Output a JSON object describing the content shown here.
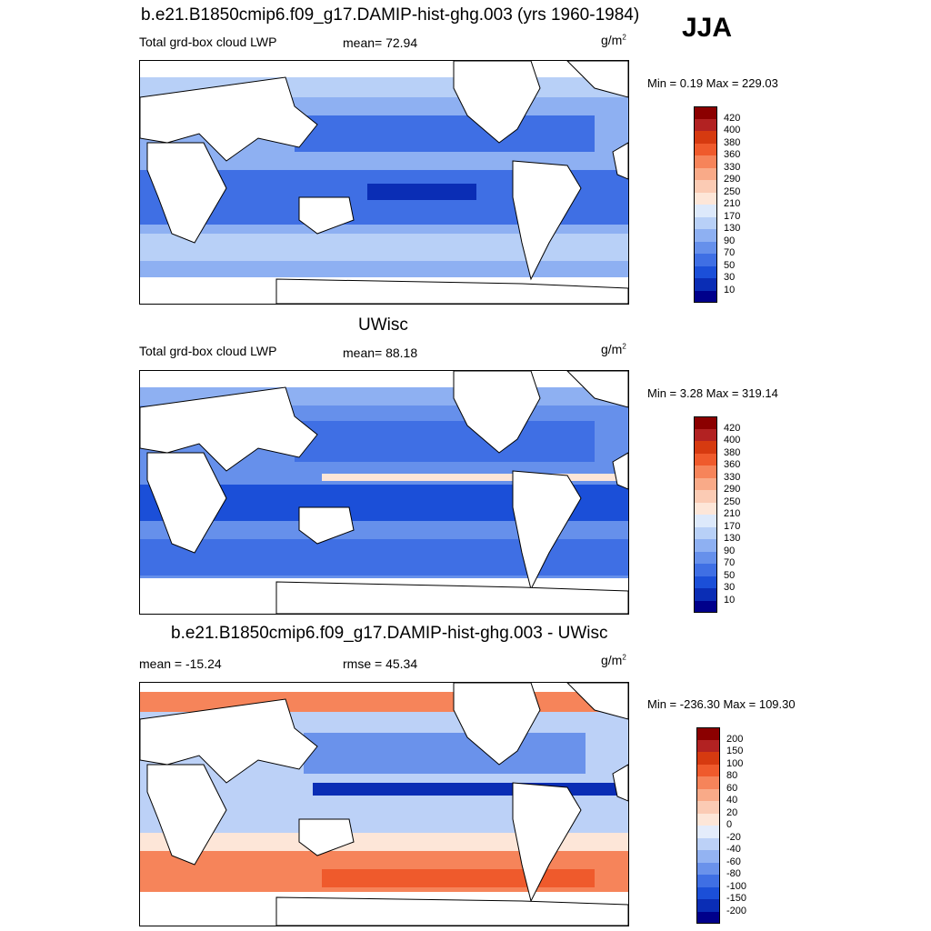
{
  "season": "JJA",
  "panels": [
    {
      "title": "b.e21.B1850cmip6.f09_g17.DAMIP-hist-ghg.003 (yrs 1960-1984)",
      "left_label": "Total grd-box cloud LWP",
      "center_label": "mean=  72.94",
      "unit_base": "g/m",
      "unit_exp": "2",
      "minmax": "Min =   0.19 Max = 229.03",
      "colorbar": {
        "labels": [
          "420",
          "400",
          "380",
          "360",
          "330",
          "290",
          "250",
          "210",
          "170",
          "130",
          "90",
          "70",
          "50",
          "30",
          "10"
        ],
        "colors": [
          "#8b0000",
          "#b22222",
          "#d63a10",
          "#ef5a2c",
          "#f6845a",
          "#f9aa88",
          "#fbcbb4",
          "#fde6d8",
          "#dde9fb",
          "#b8d0f7",
          "#8eb0f2",
          "#6690eb",
          "#3f6fe4",
          "#1b4fd8",
          "#0a2db5",
          "#00008b"
        ]
      }
    },
    {
      "title": "UWisc",
      "left_label": "Total grd-box cloud LWP",
      "center_label": "mean=  88.18",
      "unit_base": "g/m",
      "unit_exp": "2",
      "minmax": "Min =   3.28 Max = 319.14",
      "colorbar": {
        "labels": [
          "420",
          "400",
          "380",
          "360",
          "330",
          "290",
          "250",
          "210",
          "170",
          "130",
          "90",
          "70",
          "50",
          "30",
          "10"
        ],
        "colors": [
          "#8b0000",
          "#b22222",
          "#d63a10",
          "#ef5a2c",
          "#f6845a",
          "#f9aa88",
          "#fbcbb4",
          "#fde6d8",
          "#dde9fb",
          "#b8d0f7",
          "#8eb0f2",
          "#6690eb",
          "#3f6fe4",
          "#1b4fd8",
          "#0a2db5",
          "#00008b"
        ]
      }
    },
    {
      "title": "b.e21.B1850cmip6.f09_g17.DAMIP-hist-ghg.003 - UWisc",
      "left_label": "mean = -15.24",
      "center_label": "rmse =  45.34",
      "unit_base": "g/m",
      "unit_exp": "2",
      "minmax": "Min = -236.30 Max = 109.30",
      "colorbar": {
        "labels": [
          "200",
          "150",
          "100",
          "80",
          "60",
          "40",
          "20",
          "0",
          "-20",
          "-40",
          "-60",
          "-80",
          "-100",
          "-150",
          "-200"
        ],
        "colors": [
          "#8b0000",
          "#b22222",
          "#d63a10",
          "#ef5a2c",
          "#f6845a",
          "#f9aa88",
          "#fbcbb4",
          "#fde6d8",
          "#e4ecfb",
          "#bcd1f7",
          "#93b3f2",
          "#6a92eb",
          "#3f6fe4",
          "#1b4fd8",
          "#0a2db5",
          "#00008b"
        ]
      }
    }
  ],
  "map_colors": {
    "land": "#ffffff",
    "coast": "#000000"
  }
}
